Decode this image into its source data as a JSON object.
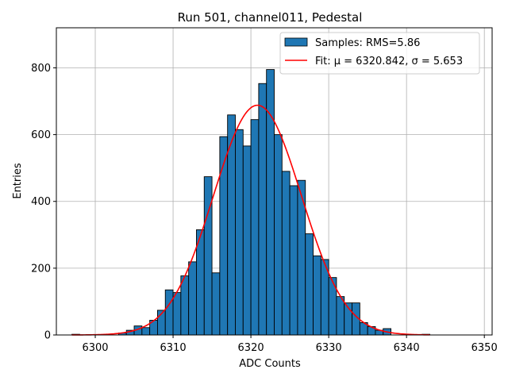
{
  "chart_data": {
    "type": "histogram",
    "title": "Run 501, channel011, Pedestal",
    "xlabel": "ADC Counts",
    "ylabel": "Entries",
    "xlim": [
      6295,
      6351
    ],
    "ylim": [
      0,
      920
    ],
    "x_ticks": [
      6300,
      6310,
      6320,
      6330,
      6340,
      6350
    ],
    "y_ticks": [
      0,
      200,
      400,
      600,
      800
    ],
    "grid": true,
    "legend_position": "top-right",
    "bin_width": 1,
    "bins": [
      {
        "x": 6297,
        "count": 2
      },
      {
        "x": 6303,
        "count": 6
      },
      {
        "x": 6304,
        "count": 14
      },
      {
        "x": 6305,
        "count": 27
      },
      {
        "x": 6306,
        "count": 22
      },
      {
        "x": 6307,
        "count": 44
      },
      {
        "x": 6308,
        "count": 74
      },
      {
        "x": 6309,
        "count": 135
      },
      {
        "x": 6310,
        "count": 127
      },
      {
        "x": 6311,
        "count": 177
      },
      {
        "x": 6312,
        "count": 219
      },
      {
        "x": 6313,
        "count": 315
      },
      {
        "x": 6314,
        "count": 474
      },
      {
        "x": 6315,
        "count": 186
      },
      {
        "x": 6316,
        "count": 594
      },
      {
        "x": 6317,
        "count": 659
      },
      {
        "x": 6318,
        "count": 615
      },
      {
        "x": 6319,
        "count": 566
      },
      {
        "x": 6320,
        "count": 645
      },
      {
        "x": 6321,
        "count": 753
      },
      {
        "x": 6322,
        "count": 795
      },
      {
        "x": 6323,
        "count": 600
      },
      {
        "x": 6324,
        "count": 490
      },
      {
        "x": 6325,
        "count": 447
      },
      {
        "x": 6326,
        "count": 463
      },
      {
        "x": 6327,
        "count": 303
      },
      {
        "x": 6328,
        "count": 237
      },
      {
        "x": 6329,
        "count": 226
      },
      {
        "x": 6330,
        "count": 172
      },
      {
        "x": 6331,
        "count": 115
      },
      {
        "x": 6332,
        "count": 96
      },
      {
        "x": 6333,
        "count": 96
      },
      {
        "x": 6334,
        "count": 37
      },
      {
        "x": 6335,
        "count": 25
      },
      {
        "x": 6336,
        "count": 14
      },
      {
        "x": 6337,
        "count": 19
      },
      {
        "x": 6342,
        "count": 2
      }
    ],
    "fit": {
      "mu": 6320.842,
      "sigma": 5.653,
      "amplitude": 688,
      "x_range": [
        6297,
        6343
      ]
    },
    "series": [
      {
        "name": "Samples: RMS=5.86",
        "kind": "histogram",
        "color": "#1f77b4"
      },
      {
        "name": "Fit: μ = 6320.842, σ = 5.653",
        "kind": "line",
        "color": "#ff0000"
      }
    ]
  }
}
